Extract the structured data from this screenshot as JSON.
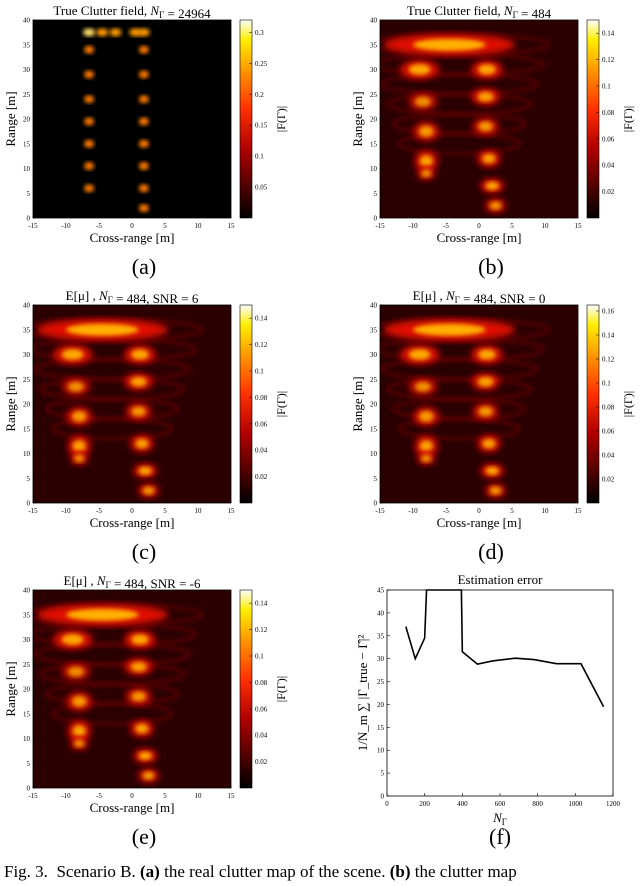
{
  "panels": [
    {
      "id": "a",
      "title": "True Clutter field, N_Γ = 24964",
      "label": "(a)",
      "xlabel": "Cross-range [m]",
      "ylabel": "Range [m]",
      "colorbar_label": "|F(Γ)|",
      "x_ticks": [
        "-15",
        "-10",
        "-5",
        "0",
        "5",
        "10",
        "15"
      ],
      "y_ticks": [
        "0",
        "5",
        "10",
        "15",
        "20",
        "25",
        "30",
        "35",
        "40"
      ],
      "cb_ticks": [
        "0.3",
        "0.25",
        "0.2",
        "0.15",
        "0.1",
        "0.05"
      ],
      "cb_max": 0.32
    },
    {
      "id": "b",
      "title": "True Clutter field, N_Γ = 484",
      "label": "(b)",
      "xlabel": "Cross-range [m]",
      "ylabel": "Range [m]",
      "colorbar_label": "|F(Γ)|",
      "x_ticks": [
        "-15",
        "-10",
        "-5",
        "0",
        "5",
        "10",
        "15"
      ],
      "y_ticks": [
        "0",
        "5",
        "10",
        "15",
        "20",
        "25",
        "30",
        "35",
        "40"
      ],
      "cb_ticks": [
        "0.14",
        "0.12",
        "0.1",
        "0.08",
        "0.06",
        "0.04",
        "0.02"
      ],
      "cb_max": 0.15
    },
    {
      "id": "c",
      "title": "E[μ] , N_Γ = 484, SNR = 6",
      "label": "(c)",
      "xlabel": "Cross-range [m]",
      "ylabel": "Range [m]",
      "colorbar_label": "|F(Γ)|",
      "x_ticks": [
        "-15",
        "-10",
        "-5",
        "0",
        "5",
        "10",
        "15"
      ],
      "y_ticks": [
        "0",
        "5",
        "10",
        "15",
        "20",
        "25",
        "30",
        "35",
        "40"
      ],
      "cb_ticks": [
        "0.14",
        "0.12",
        "0.1",
        "0.08",
        "0.06",
        "0.04",
        "0.02"
      ],
      "cb_max": 0.15
    },
    {
      "id": "d",
      "title": "E[μ] , N_Γ = 484, SNR = 0",
      "label": "(d)",
      "xlabel": "Cross-range [m]",
      "ylabel": "Range [m]",
      "colorbar_label": "|F(Γ)|",
      "x_ticks": [
        "-15",
        "-10",
        "-5",
        "0",
        "5",
        "10",
        "15"
      ],
      "y_ticks": [
        "0",
        "5",
        "10",
        "15",
        "20",
        "25",
        "30",
        "35",
        "40"
      ],
      "cb_ticks": [
        "0.16",
        "0.14",
        "0.12",
        "0.1",
        "0.08",
        "0.06",
        "0.04",
        "0.02"
      ],
      "cb_max": 0.165
    },
    {
      "id": "e",
      "title": "E[μ] , N_Γ = 484, SNR = -6",
      "label": "(e)",
      "xlabel": "Cross-range [m]",
      "ylabel": "Range [m]",
      "colorbar_label": "|F(Γ)|",
      "x_ticks": [
        "-15",
        "-10",
        "-5",
        "0",
        "5",
        "10",
        "15"
      ],
      "y_ticks": [
        "0",
        "5",
        "10",
        "15",
        "20",
        "25",
        "30",
        "35",
        "40"
      ],
      "cb_ticks": [
        "0.14",
        "0.12",
        "0.1",
        "0.08",
        "0.06",
        "0.04",
        "0.02"
      ],
      "cb_max": 0.15
    }
  ],
  "chart_data": {
    "type": "line",
    "title": "Estimation error",
    "label": "(f)",
    "xlabel": "N_Γ",
    "ylabel": "1/N_m ∑ |Γ_true − Γ̂|²",
    "xlim": [
      0,
      1200
    ],
    "ylim": [
      0,
      45
    ],
    "x_ticks": [
      "0",
      "200",
      "400",
      "600",
      "800",
      "1000",
      "1200"
    ],
    "y_ticks": [
      "0",
      "5",
      "10",
      "15",
      "20",
      "25",
      "30",
      "35",
      "40",
      "45"
    ],
    "grid": false,
    "series": [
      {
        "x": [
          100,
          150,
          200,
          210,
          395,
          400,
          480,
          560,
          680,
          780,
          900,
          1030,
          1150
        ],
        "y": [
          37,
          30,
          34.5,
          45,
          45,
          31.5,
          28.8,
          29.5,
          30.1,
          29.8,
          28.9,
          28.9,
          19.5
        ]
      }
    ]
  },
  "caption": {
    "fig": "Fig. 3.",
    "scenario": "Scenario B.",
    "a_tag": "(a)",
    "a_text": "the real clutter map of the scene.",
    "b_tag": "(b)",
    "b_text": "the clutter map"
  }
}
